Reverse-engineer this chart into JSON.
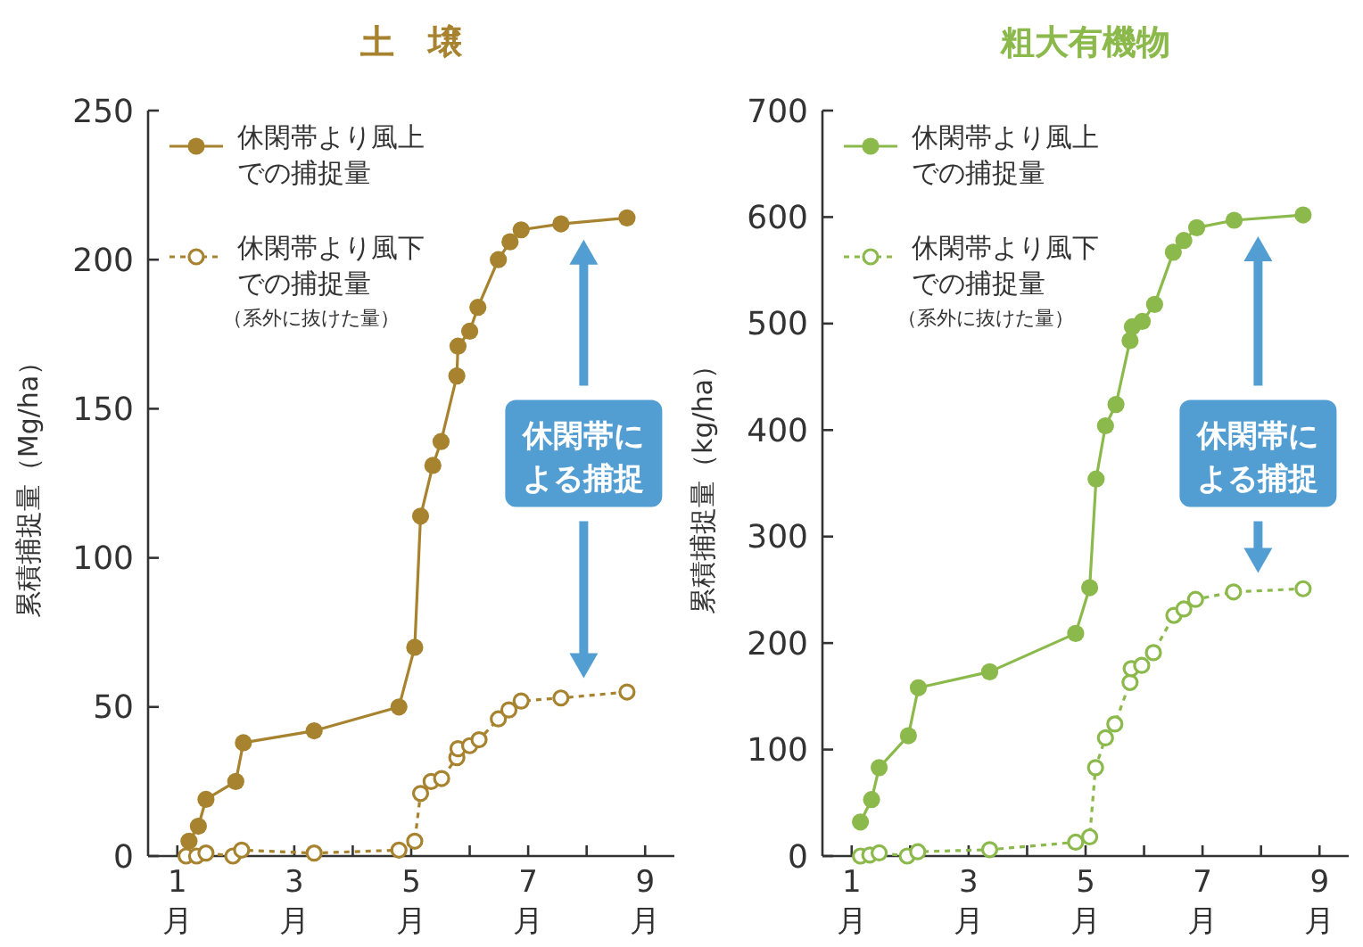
{
  "chart_data": [
    {
      "type": "line",
      "title": "土　壌",
      "ylabel": "累積捕捉量（Mg/ha）",
      "xlim": [
        0.5,
        9.5
      ],
      "ylim": [
        0,
        250
      ],
      "yticks": [
        0,
        50,
        100,
        150,
        200,
        250
      ],
      "xticks": [
        {
          "value": 1,
          "label": "1\n月"
        },
        {
          "value": 2,
          "label": null
        },
        {
          "value": 3,
          "label": "3\n月"
        },
        {
          "value": 4,
          "label": null
        },
        {
          "value": 5,
          "label": "5\n月"
        },
        {
          "value": 6,
          "label": null
        },
        {
          "value": 7,
          "label": "7\n月"
        },
        {
          "value": 8,
          "label": null
        },
        {
          "value": 9,
          "label": "9\n月"
        }
      ],
      "legend": "top left",
      "marker": "circle",
      "grid": false,
      "series": [
        {
          "name": "休閑帯より風上での捕捉量",
          "color": "#a7832f",
          "line_style": "solid",
          "x": [
            1.2,
            1.36,
            1.49,
            2.0,
            2.13,
            3.34,
            4.79,
            5.06,
            5.16,
            5.37,
            5.51,
            5.78,
            5.8,
            6.0,
            6.14,
            6.49,
            6.69,
            6.88,
            7.56,
            8.69
          ],
          "values": [
            5,
            10,
            19,
            25,
            38,
            42,
            50,
            70,
            114,
            131,
            139,
            161,
            171,
            176,
            184,
            200,
            206,
            210,
            212,
            214
          ]
        },
        {
          "name": "休閑帯より風下での捕捉量",
          "color": "#a7832f",
          "line_style": "dashed",
          "x": [
            1.15,
            1.33,
            1.49,
            1.95,
            2.1,
            3.34,
            4.79,
            5.06,
            5.16,
            5.34,
            5.52,
            5.78,
            5.8,
            6.0,
            6.16,
            6.49,
            6.67,
            6.88,
            7.56,
            8.69
          ],
          "values": [
            0,
            0,
            1,
            0,
            2,
            1,
            2,
            5,
            21,
            25,
            26,
            33,
            36,
            37,
            39,
            46,
            49,
            52,
            53,
            55
          ]
        }
      ],
      "annotations": [
        "（系外に抜けた量）",
        "休閑帯による捕捉"
      ]
    },
    {
      "type": "line",
      "title": "粗大有機物",
      "ylabel": "累積捕捉量（kg/ha）",
      "xlim": [
        0.5,
        9.5
      ],
      "ylim": [
        0,
        700
      ],
      "yticks": [
        0,
        100,
        200,
        300,
        400,
        500,
        600,
        700
      ],
      "xticks": [
        {
          "value": 1,
          "label": "1\n月"
        },
        {
          "value": 2,
          "label": null
        },
        {
          "value": 3,
          "label": "3\n月"
        },
        {
          "value": 4,
          "label": null
        },
        {
          "value": 5,
          "label": "5\n月"
        },
        {
          "value": 6,
          "label": null
        },
        {
          "value": 7,
          "label": "7\n月"
        },
        {
          "value": 8,
          "label": null
        },
        {
          "value": 9,
          "label": "9\n月"
        }
      ],
      "legend": "top left",
      "marker": "circle",
      "grid": false,
      "series": [
        {
          "name": "休閑帯より風上での捕捉量",
          "color": "#8cb94b",
          "line_style": "solid",
          "x": [
            1.15,
            1.34,
            1.47,
            1.97,
            2.14,
            3.36,
            4.83,
            5.07,
            5.18,
            5.34,
            5.52,
            5.76,
            5.8,
            5.97,
            6.18,
            6.5,
            6.68,
            6.9,
            7.54,
            8.72
          ],
          "values": [
            32,
            53,
            83,
            113,
            158,
            173,
            209,
            252,
            354,
            404,
            424,
            484,
            497,
            502,
            518,
            567,
            578,
            590,
            597,
            602
          ]
        },
        {
          "name": "休閑帯より風下での捕捉量",
          "color": "#8cb94b",
          "line_style": "dashed",
          "x": [
            1.15,
            1.31,
            1.47,
            1.95,
            2.13,
            3.36,
            4.83,
            5.07,
            5.17,
            5.34,
            5.5,
            5.76,
            5.78,
            5.96,
            6.16,
            6.51,
            6.68,
            6.88,
            7.53,
            8.72
          ],
          "values": [
            0,
            1,
            3,
            0,
            4,
            6,
            13,
            18,
            83,
            111,
            124,
            163,
            176,
            179,
            191,
            226,
            232,
            241,
            248,
            251
          ]
        }
      ],
      "annotations": [
        "（系外に抜けた量）",
        "休閑帯による捕捉"
      ]
    }
  ]
}
